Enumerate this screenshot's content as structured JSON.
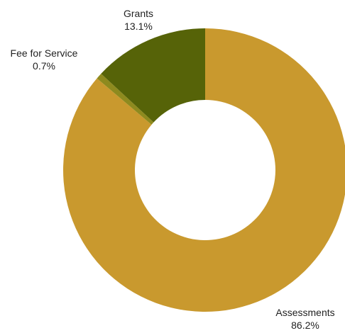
{
  "chart_data": {
    "type": "pie",
    "donut": true,
    "categories": [
      "Assessments",
      "Fee for Service",
      "Grants"
    ],
    "values": [
      86.2,
      0.7,
      13.1
    ],
    "value_labels": [
      "86.2%",
      "0.7%",
      "13.1%"
    ],
    "colors": [
      "#C9992E",
      "#8E8A1E",
      "#566308"
    ],
    "title": "",
    "legend": "none",
    "start_angle_deg": 0,
    "direction": "clockwise"
  }
}
